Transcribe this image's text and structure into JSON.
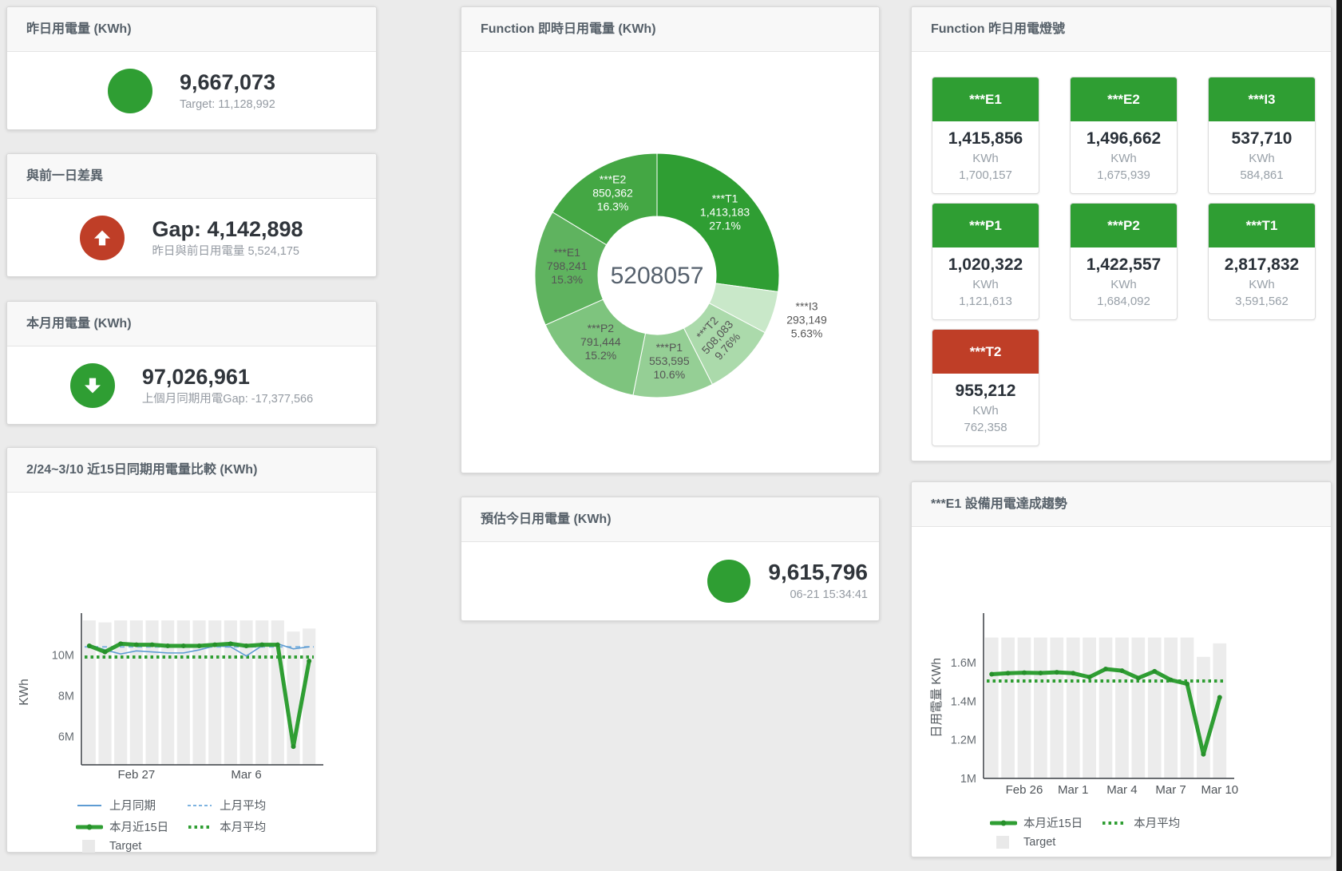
{
  "colors": {
    "green": "#2f9e33",
    "red": "#bf3e27",
    "blue_line": "#5e9cd3",
    "blue_dash": "#7eb3e0",
    "bar_gray": "#ececec",
    "header_text": "#566069",
    "value_text": "#30353b",
    "sub_text": "#949aa2"
  },
  "cards": {
    "yesterday": {
      "title": "昨日用電量 (KWh)",
      "value": "9,667,073",
      "subtext": "Target: 11,128,992",
      "indicator": "circle",
      "indicator_color": "#2f9e33"
    },
    "day_gap": {
      "title": "與前一日差異",
      "value": "Gap: 4,142,898",
      "subtext": "昨日與前日用電量 5,524,175",
      "indicator": "arrow-up",
      "indicator_color": "#bf3e27"
    },
    "month": {
      "title": "本月用電量 (KWh)",
      "value": "97,026,961",
      "subtext": "上個月同期用電Gap: -17,377,566",
      "indicator": "arrow-down",
      "indicator_color": "#2f9e33"
    },
    "forecast": {
      "title": "預估今日用電量 (KWh)",
      "value": "9,615,796",
      "subtext": "06-21 15:34:41",
      "indicator": "circle",
      "indicator_color": "#2f9e33"
    }
  },
  "donut": {
    "title": "Function 即時日用電量 (KWh)",
    "center_value": "5208057",
    "slices": [
      {
        "name": "***T1",
        "value": 1413183,
        "display": "1,413,183",
        "pct": "27.1%",
        "color": "#2f9e33",
        "label": "inside",
        "text_color": "#ffffff"
      },
      {
        "name": "***I3",
        "value": 293149,
        "display": "293,149",
        "pct": "5.63%",
        "color": "#c9e8c9",
        "label": "outside",
        "text_color": "#555555"
      },
      {
        "name": "***T2",
        "value": 508083,
        "display": "508,083",
        "pct": "9.76%",
        "color": "#abdaab",
        "label": "inside",
        "text_color": "#555555",
        "rotate": -48
      },
      {
        "name": "***P1",
        "value": 553595,
        "display": "553,595",
        "pct": "10.6%",
        "color": "#95cf95",
        "label": "inside",
        "text_color": "#555555"
      },
      {
        "name": "***P2",
        "value": 791444,
        "display": "791,444",
        "pct": "15.2%",
        "color": "#7ec47e",
        "label": "inside",
        "text_color": "#555555"
      },
      {
        "name": "***E1",
        "value": 798241,
        "display": "798,241",
        "pct": "15.3%",
        "color": "#5fb35f",
        "label": "inside",
        "text_color": "#555555"
      },
      {
        "name": "***E2",
        "value": 850362,
        "display": "850,362",
        "pct": "16.3%",
        "color": "#44a744",
        "label": "inside",
        "text_color": "#ffffff"
      }
    ]
  },
  "lights": {
    "title": "Function 昨日用電燈號",
    "unit": "KWh",
    "tiles": [
      {
        "id": "e1",
        "name": "***E1",
        "value": "1,415,856",
        "target": "1,700,157",
        "status_color": "#2f9e33"
      },
      {
        "id": "e2",
        "name": "***E2",
        "value": "1,496,662",
        "target": "1,675,939",
        "status_color": "#2f9e33"
      },
      {
        "id": "i3",
        "name": "***I3",
        "value": "537,710",
        "target": "584,861",
        "status_color": "#2f9e33"
      },
      {
        "id": "p1",
        "name": "***P1",
        "value": "1,020,322",
        "target": "1,121,613",
        "status_color": "#2f9e33"
      },
      {
        "id": "p2",
        "name": "***P2",
        "value": "1,422,557",
        "target": "1,684,092",
        "status_color": "#2f9e33"
      },
      {
        "id": "t1",
        "name": "***T1",
        "value": "2,817,832",
        "target": "3,591,562",
        "status_color": "#2f9e33"
      },
      {
        "id": "t2",
        "name": "***T2",
        "value": "955,212",
        "target": "762,358",
        "status_color": "#bf3e27"
      }
    ]
  },
  "chart_data": [
    {
      "type": "line+bar",
      "title": "2/24~3/10 近15日同期用電量比較 (KWh)",
      "ylabel": "KWh",
      "categories": [
        "2/24",
        "2/25",
        "2/26",
        "2/27",
        "2/28",
        "3/1",
        "3/2",
        "3/3",
        "3/4",
        "3/5",
        "3/6",
        "3/7",
        "3/8",
        "3/9",
        "3/10"
      ],
      "x_ticks": [
        {
          "index": 3,
          "label": "Feb 27"
        },
        {
          "index": 10,
          "label": "Mar 6"
        }
      ],
      "y_ticks": [
        {
          "value": 6000000,
          "label": "6M"
        },
        {
          "value": 8000000,
          "label": "8M"
        },
        {
          "value": 10000000,
          "label": "10M"
        }
      ],
      "ylim": [
        4600000,
        11900000
      ],
      "grid": false,
      "legend_position": "bottom",
      "series": [
        {
          "name": "Target",
          "type": "bar",
          "color": "#ececec",
          "values": [
            11700000,
            11600000,
            11700000,
            11700000,
            11700000,
            11700000,
            11700000,
            11700000,
            11700000,
            11700000,
            11700000,
            11700000,
            11700000,
            11150000,
            11300000
          ]
        },
        {
          "name": "上月平均",
          "type": "dash-const",
          "color": "#7eb3e0",
          "value": 10400000
        },
        {
          "name": "本月平均",
          "type": "dot-const",
          "color": "#2f9e33",
          "value": 9900000
        },
        {
          "name": "上月同期",
          "type": "line",
          "color": "#5e9cd3",
          "width": 1.6,
          "values": [
            10500000,
            10250000,
            10050000,
            10200000,
            10150000,
            10100000,
            10100000,
            10250000,
            10450000,
            10400000,
            9950000,
            10450000,
            10550000,
            10300000,
            10400000
          ]
        },
        {
          "name": "本月近15日",
          "type": "thick-line",
          "color": "#2f9e33",
          "width": 5,
          "values": [
            10450000,
            10150000,
            10550000,
            10500000,
            10500000,
            10450000,
            10450000,
            10450000,
            10500000,
            10550000,
            10450000,
            10500000,
            10500000,
            5500000,
            9700000
          ]
        }
      ],
      "legend": [
        {
          "label": "上月同期",
          "kind": "line",
          "color": "#5e9cd3"
        },
        {
          "label": "上月平均",
          "kind": "dash",
          "color": "#7eb3e0"
        },
        {
          "label": "本月近15日",
          "kind": "thick",
          "color": "#2f9e33"
        },
        {
          "label": "本月平均",
          "kind": "dots",
          "color": "#2f9e33"
        },
        {
          "label": "Target",
          "kind": "box",
          "color": "#e9e9e9"
        }
      ]
    },
    {
      "type": "line+bar",
      "title": "***E1 設備用電達成趨勢",
      "ylabel": "日用電量 KWh",
      "categories": [
        "2/24",
        "2/25",
        "2/26",
        "2/27",
        "2/28",
        "3/1",
        "3/2",
        "3/3",
        "3/4",
        "3/5",
        "3/6",
        "3/7",
        "3/8",
        "3/9",
        "3/10"
      ],
      "x_ticks": [
        {
          "index": 2,
          "label": "Feb 26"
        },
        {
          "index": 5,
          "label": "Mar 1"
        },
        {
          "index": 8,
          "label": "Mar 4"
        },
        {
          "index": 11,
          "label": "Mar 7"
        },
        {
          "index": 14,
          "label": "Mar 10"
        }
      ],
      "y_ticks": [
        {
          "value": 1000000,
          "label": "1M"
        },
        {
          "value": 1200000,
          "label": "1.2M"
        },
        {
          "value": 1400000,
          "label": "1.4M"
        },
        {
          "value": 1600000,
          "label": "1.6M"
        }
      ],
      "ylim": [
        1000000,
        1840000
      ],
      "grid": false,
      "legend_position": "bottom",
      "series": [
        {
          "name": "Target",
          "type": "bar",
          "color": "#ececec",
          "values": [
            1730000,
            1730000,
            1730000,
            1730000,
            1730000,
            1730000,
            1730000,
            1730000,
            1730000,
            1730000,
            1730000,
            1730000,
            1730000,
            1630000,
            1700000
          ]
        },
        {
          "name": "本月平均",
          "type": "dot-const",
          "color": "#2f9e33",
          "value": 1505000
        },
        {
          "name": "本月近15日",
          "type": "thick-line",
          "color": "#2f9e33",
          "width": 5,
          "values": [
            1540000,
            1545000,
            1548000,
            1546000,
            1550000,
            1545000,
            1525000,
            1567000,
            1558000,
            1520000,
            1555000,
            1510000,
            1490000,
            1125000,
            1420000
          ]
        }
      ],
      "legend": [
        {
          "label": "本月近15日",
          "kind": "thick",
          "color": "#2f9e33"
        },
        {
          "label": "本月平均",
          "kind": "dots",
          "color": "#2f9e33"
        },
        {
          "label": "Target",
          "kind": "box",
          "color": "#e9e9e9"
        }
      ]
    }
  ]
}
